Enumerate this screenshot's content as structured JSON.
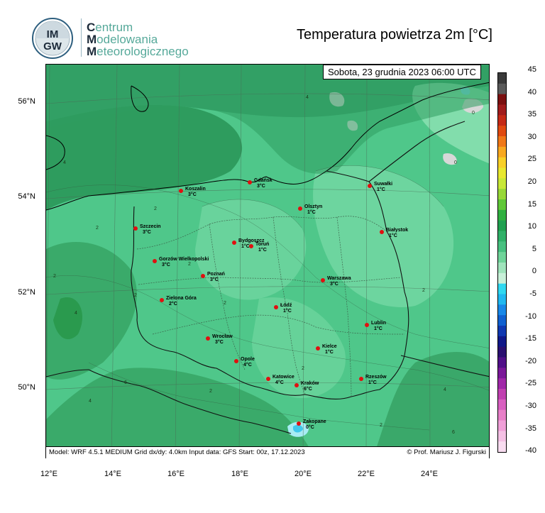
{
  "header": {
    "org_initials": [
      "C",
      "M",
      "M"
    ],
    "org_rest": [
      "entrum",
      "odelowania",
      "eteorologicznego"
    ],
    "logo_text": [
      "IM",
      "GW"
    ],
    "title": "Temperatura powietrza 2m [°C]"
  },
  "map": {
    "date": "Sobota, 23 grudnia 2023 06:00 UTC",
    "info": "Model: WRF 4.5.1 MEDIUM   Grid dx/dy: 4.0km   Input data: GFS   Start: 00z, 17.12.2023",
    "credit": "© Prof. Mariusz J. Figurski",
    "lat_labels": [
      "56°N",
      "54°N",
      "52°N",
      "50°N"
    ],
    "lon_labels": [
      "12°E",
      "14°E",
      "16°E",
      "18°E",
      "20°E",
      "22°E",
      "24°E"
    ],
    "cities": [
      {
        "name": "Koszalin",
        "temp": "3°C"
      },
      {
        "name": "Gdańsk",
        "temp": "3°C"
      },
      {
        "name": "Suwałki",
        "temp": "1°C"
      },
      {
        "name": "Olsztyn",
        "temp": "1°C"
      },
      {
        "name": "Szczecin",
        "temp": "3°C"
      },
      {
        "name": "Bydgoszcz",
        "temp": "1°C"
      },
      {
        "name": "Toruń",
        "temp": "1°C"
      },
      {
        "name": "Białystok",
        "temp": "1°C"
      },
      {
        "name": "Gorzów Wielkopolski",
        "temp": "3°C"
      },
      {
        "name": "Poznań",
        "temp": "3°C"
      },
      {
        "name": "Warszawa",
        "temp": "3°C"
      },
      {
        "name": "Zielona Góra",
        "temp": "2°C"
      },
      {
        "name": "Łódź",
        "temp": "1°C"
      },
      {
        "name": "Lublin",
        "temp": "1°C"
      },
      {
        "name": "Wrocław",
        "temp": "3°C"
      },
      {
        "name": "Kielce",
        "temp": "1°C"
      },
      {
        "name": "Opole",
        "temp": "4°C"
      },
      {
        "name": "Katowice",
        "temp": "4°C"
      },
      {
        "name": "Kraków",
        "temp": "6°C"
      },
      {
        "name": "Rzeszów",
        "temp": "1°C"
      },
      {
        "name": "Zakopane",
        "temp": "0°C"
      }
    ],
    "contour_labels": [
      "4",
      "2",
      "0",
      "6"
    ]
  },
  "colorbar": {
    "ticks": [
      "45",
      "40",
      "35",
      "30",
      "25",
      "20",
      "15",
      "10",
      "5",
      "0",
      "-5",
      "-10",
      "-15",
      "-20",
      "-25",
      "-30",
      "-35",
      "-40"
    ],
    "colors": [
      "#3a3a3a",
      "#5a5a5a",
      "#7a1010",
      "#a01c1c",
      "#c42a16",
      "#e04a10",
      "#f07818",
      "#f8a820",
      "#f8d028",
      "#e8e830",
      "#c8e838",
      "#98d838",
      "#60c838",
      "#30b040",
      "#20a050",
      "#30b068",
      "#48c080",
      "#70d49a",
      "#a0e4bc",
      "#c8f0d8",
      "#30d8f0",
      "#20b8f0",
      "#1888e8",
      "#1060d0",
      "#1038b0",
      "#101888",
      "#2a1070",
      "#501088",
      "#7a1898",
      "#a028a8",
      "#c040b0",
      "#d860c0",
      "#e880c8",
      "#f0a0d8",
      "#f4c0e4",
      "#f8dcf0"
    ]
  }
}
